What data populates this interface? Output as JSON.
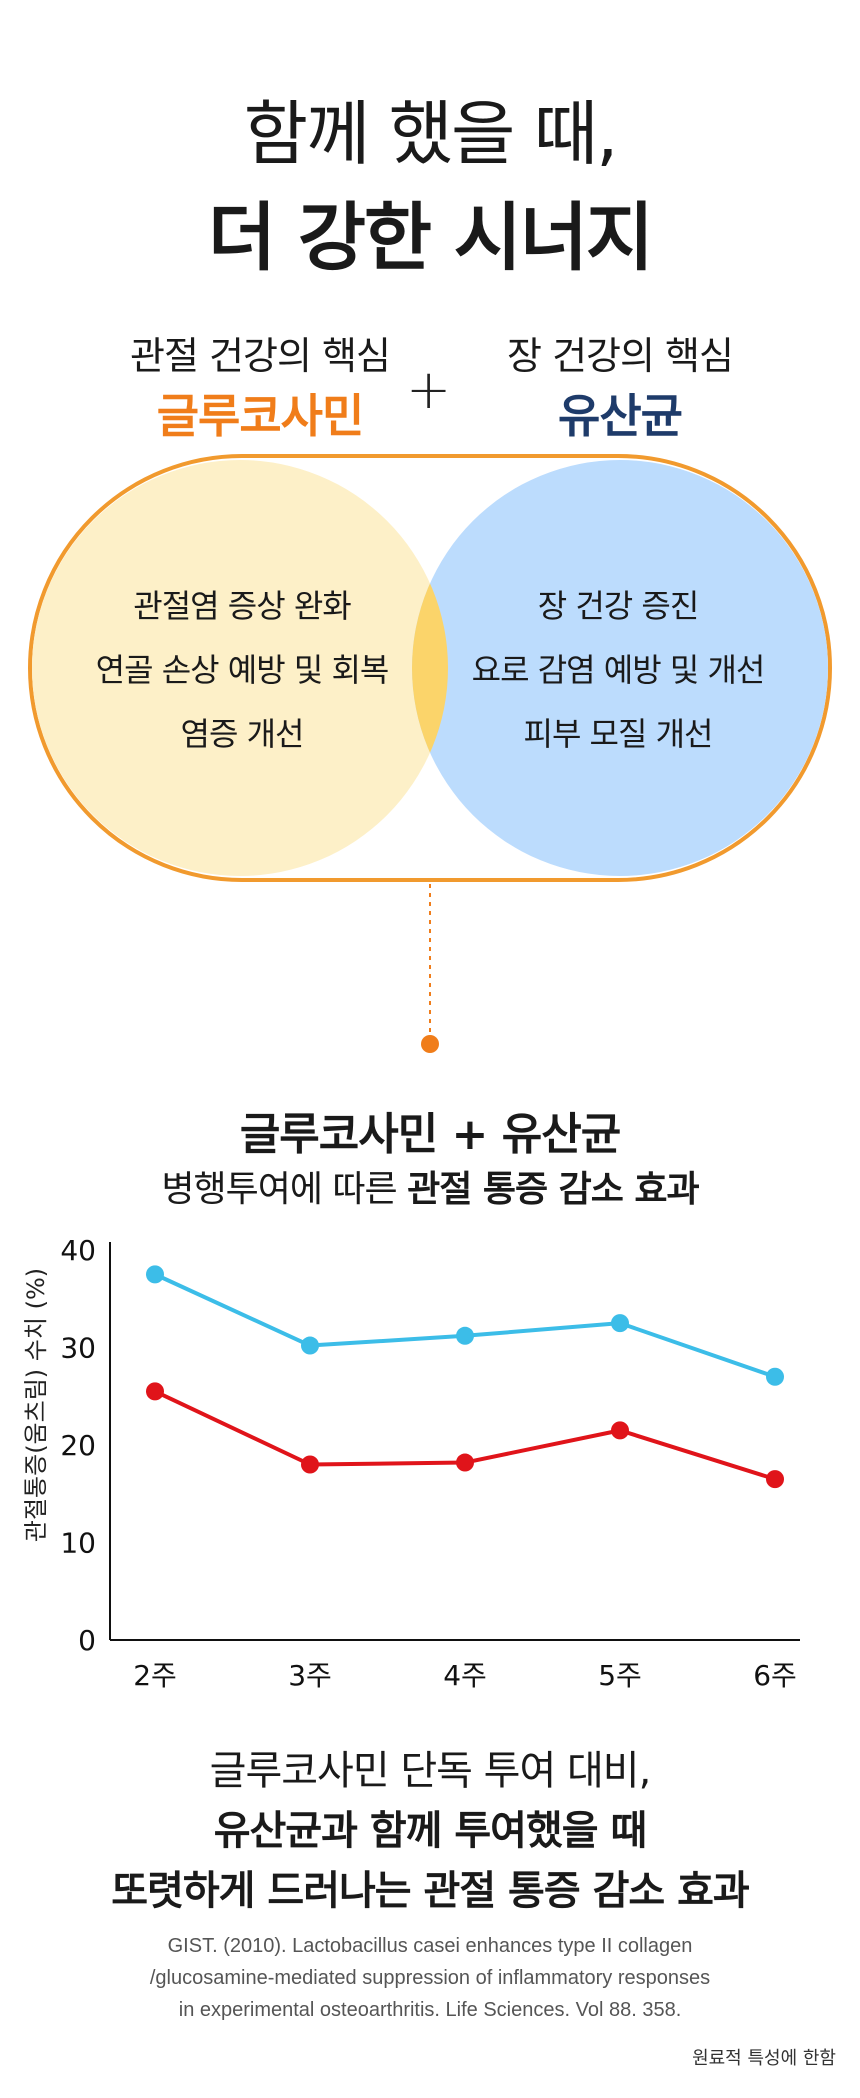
{
  "heading": {
    "line1": "함께 했을 때,",
    "line2": "더 강한 시너지"
  },
  "ingredients": {
    "left": {
      "subtitle": "관절 건강의 핵심",
      "name": "글루코사민",
      "color": "#f07d1a"
    },
    "plus": "+",
    "right": {
      "subtitle": "장 건강의 핵심",
      "name": "유산균",
      "color": "#1e3b6a"
    }
  },
  "venn": {
    "left_items": [
      "관절염 증상 완화",
      "연골 손상 예방 및 회복",
      "염증 개선"
    ],
    "right_items": [
      "장 건강 증진",
      "요로 감염 예방 및 개선",
      "피부 모질 개선"
    ],
    "colors": {
      "left_fill": "#fdf0c8",
      "right_fill": "#bcdcfd",
      "overlap": "#fbd46a",
      "outline": "#f19a2e"
    }
  },
  "chart_section": {
    "title": "글루코사민 + 유산균",
    "subtitle_normal": "병행투여에 따른 ",
    "subtitle_bold": "관절 통증 감소 효과"
  },
  "chart_data": {
    "type": "line",
    "categories": [
      "2주",
      "3주",
      "4주",
      "5주",
      "6주"
    ],
    "ylabel": "관절통증(움츠림) 수치 (%)",
    "ylim": [
      0,
      40
    ],
    "yticks": [
      0,
      10,
      20,
      30,
      40
    ],
    "series": [
      {
        "values": [
          37.5,
          30.2,
          31.2,
          32.5,
          27.0
        ],
        "color": "#3cbde8"
      },
      {
        "values": [
          25.5,
          18.0,
          18.2,
          21.5,
          16.5
        ],
        "color": "#e0141a"
      }
    ]
  },
  "summary": {
    "line1": "글루코사민 단독 투여 대비,",
    "line2": "유산균과 함께 투여했을 때",
    "line3": "또렷하게 드러나는 관절 통증 감소 효과"
  },
  "citation": {
    "line1": "GIST. (2010). Lactobacillus casei enhances type II collagen",
    "line2": "/glucosamine-mediated suppression of inflammatory responses",
    "line3": "in experimental osteoarthritis. Life Sciences. Vol 88. 358."
  },
  "note": "원료적 특성에 한함"
}
